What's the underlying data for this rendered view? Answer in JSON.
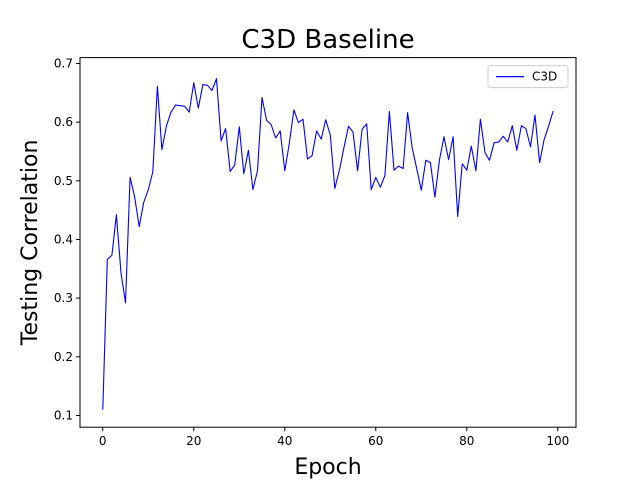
{
  "chart_data": {
    "type": "line",
    "title": "C3D Baseline",
    "xlabel": "Epoch",
    "ylabel": "Testing Correlation",
    "xlim": [
      -5,
      104
    ],
    "ylim": [
      0.08,
      0.71
    ],
    "xticks": [
      0,
      20,
      40,
      60,
      80,
      100
    ],
    "yticks": [
      0.1,
      0.2,
      0.3,
      0.4,
      0.5,
      0.6,
      0.7
    ],
    "grid": false,
    "legend": {
      "position": "top-right",
      "entries": [
        "C3D"
      ]
    },
    "series": [
      {
        "name": "C3D",
        "color": "#0000ff",
        "x": [
          0,
          1,
          2,
          3,
          4,
          5,
          6,
          7,
          8,
          9,
          10,
          11,
          12,
          13,
          14,
          15,
          16,
          17,
          18,
          19,
          20,
          21,
          22,
          23,
          24,
          25,
          26,
          27,
          28,
          29,
          30,
          31,
          32,
          33,
          34,
          35,
          36,
          37,
          38,
          39,
          40,
          41,
          42,
          43,
          44,
          45,
          46,
          47,
          48,
          49,
          50,
          51,
          52,
          53,
          54,
          55,
          56,
          57,
          58,
          59,
          60,
          61,
          62,
          63,
          64,
          65,
          66,
          67,
          68,
          69,
          70,
          71,
          72,
          73,
          74,
          75,
          76,
          77,
          78,
          79,
          80,
          81,
          82,
          83,
          84,
          85,
          86,
          87,
          88,
          89,
          90,
          91,
          92,
          93,
          94,
          95,
          96,
          97,
          98,
          99
        ],
        "y": [
          0.11,
          0.366,
          0.373,
          0.442,
          0.343,
          0.292,
          0.506,
          0.473,
          0.422,
          0.463,
          0.485,
          0.515,
          0.661,
          0.553,
          0.594,
          0.617,
          0.629,
          0.628,
          0.627,
          0.617,
          0.667,
          0.624,
          0.664,
          0.663,
          0.654,
          0.674,
          0.568,
          0.589,
          0.516,
          0.527,
          0.592,
          0.512,
          0.552,
          0.485,
          0.517,
          0.642,
          0.603,
          0.596,
          0.573,
          0.585,
          0.517,
          0.564,
          0.621,
          0.599,
          0.605,
          0.537,
          0.543,
          0.585,
          0.571,
          0.604,
          0.578,
          0.487,
          0.518,
          0.556,
          0.593,
          0.583,
          0.517,
          0.588,
          0.597,
          0.485,
          0.506,
          0.489,
          0.509,
          0.618,
          0.518,
          0.525,
          0.521,
          0.616,
          0.556,
          0.521,
          0.484,
          0.535,
          0.531,
          0.472,
          0.536,
          0.575,
          0.536,
          0.575,
          0.439,
          0.529,
          0.518,
          0.559,
          0.517,
          0.605,
          0.548,
          0.535,
          0.565,
          0.566,
          0.576,
          0.566,
          0.594,
          0.552,
          0.594,
          0.589,
          0.558,
          0.612,
          0.531,
          0.57,
          0.594,
          0.619
        ]
      }
    ]
  }
}
